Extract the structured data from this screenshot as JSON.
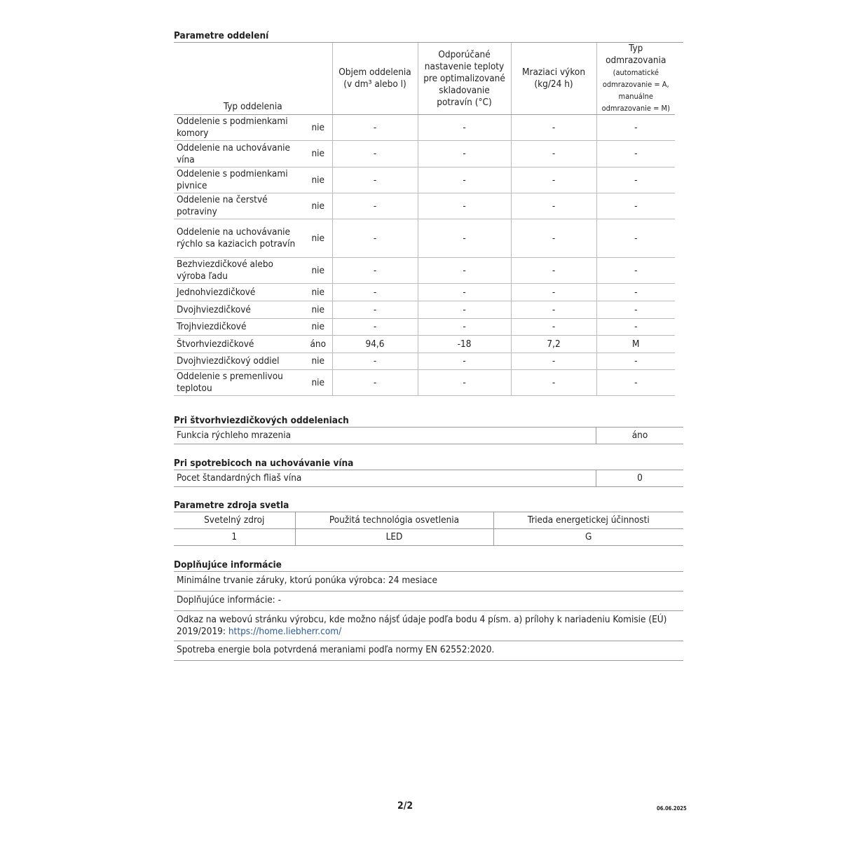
{
  "compartments": {
    "title": "Parametre oddelení",
    "headers": [
      "Typ oddelenia",
      "Objem oddelenia (v dm³ alebo l)",
      "Odporúčané nastavenie teploty pre optimalizované skladovanie potravín (°C)",
      "Mraziaci výkon (kg/24 h)",
      "Typ odmrazovania"
    ],
    "defrost_note": "(automatické odmrazovanie = A, manuálne odmrazovanie = M)",
    "rows": [
      {
        "name": "Oddelenie s podmienkami komory",
        "present": "nie",
        "volume": "-",
        "temp": "-",
        "freeze": "-",
        "defrost": "-"
      },
      {
        "name": "Oddelenie na uchovávanie vína",
        "present": "nie",
        "volume": "-",
        "temp": "-",
        "freeze": "-",
        "defrost": "-"
      },
      {
        "name": "Oddelenie s podmienkami pivnice",
        "present": "nie",
        "volume": "-",
        "temp": "-",
        "freeze": "-",
        "defrost": "-"
      },
      {
        "name": "Oddelenie na čerstvé potraviny",
        "present": "nie",
        "volume": "-",
        "temp": "-",
        "freeze": "-",
        "defrost": "-"
      },
      {
        "name": "Oddelenie na uchovávanie rýchlo sa kaziacich potravín",
        "present": "nie",
        "volume": "-",
        "temp": "-",
        "freeze": "-",
        "defrost": "-"
      },
      {
        "name": "Bezhviezdičkové alebo výroba ľadu",
        "present": "nie",
        "volume": "-",
        "temp": "-",
        "freeze": "-",
        "defrost": "-"
      },
      {
        "name": "Jednohviezdičkové",
        "present": "nie",
        "volume": "-",
        "temp": "-",
        "freeze": "-",
        "defrost": "-"
      },
      {
        "name": "Dvojhviezdičkové",
        "present": "nie",
        "volume": "-",
        "temp": "-",
        "freeze": "-",
        "defrost": "-"
      },
      {
        "name": "Trojhviezdičkové",
        "present": "nie",
        "volume": "-",
        "temp": "-",
        "freeze": "-",
        "defrost": "-"
      },
      {
        "name": "Štvorhviezdičkové",
        "present": "áno",
        "volume": "94,6",
        "temp": "-18",
        "freeze": "7,2",
        "defrost": "M"
      },
      {
        "name": "Dvojhviezdičkový oddiel",
        "present": "nie",
        "volume": "-",
        "temp": "-",
        "freeze": "-",
        "defrost": "-"
      },
      {
        "name": "Oddelenie s premenlivou teplotou",
        "present": "nie",
        "volume": "-",
        "temp": "-",
        "freeze": "-",
        "defrost": "-"
      }
    ]
  },
  "four_star": {
    "title": "Pri štvorhviezdičkových oddeleniach",
    "label": "Funkcia rýchleho mrazenia",
    "value": "áno"
  },
  "wine": {
    "title": "Pri spotrebicoch na uchovávanie vína",
    "label": "Pocet štandardných fliaš vína",
    "value": "0"
  },
  "light": {
    "title": "Parametre zdroja svetla",
    "headers": [
      "Svetelný zdroj",
      "Použitá technológia osvetlenia",
      "Trieda energetickej účinnosti"
    ],
    "values": [
      "1",
      "LED",
      "G"
    ]
  },
  "info": {
    "title": "Doplňujúce informácie",
    "warranty": "Minimálne trvanie záruky, ktorú ponúka výrobca: 24 mesiace",
    "additional": "Doplňujúce informácie: -",
    "link_text": "Odkaz na webovú stránku výrobcu, kde možno nájsť údaje podľa bodu 4 písm. a) prílohy k nariadeniu Komisie (EÚ) 2019/2019: ",
    "link_url": "https://home.liebherr.com/",
    "energy": "Spotreba energie bola potvrdená meraniami podľa normy EN 62552:2020."
  },
  "footer": {
    "page": "2/2",
    "date": "06.06.2025"
  }
}
